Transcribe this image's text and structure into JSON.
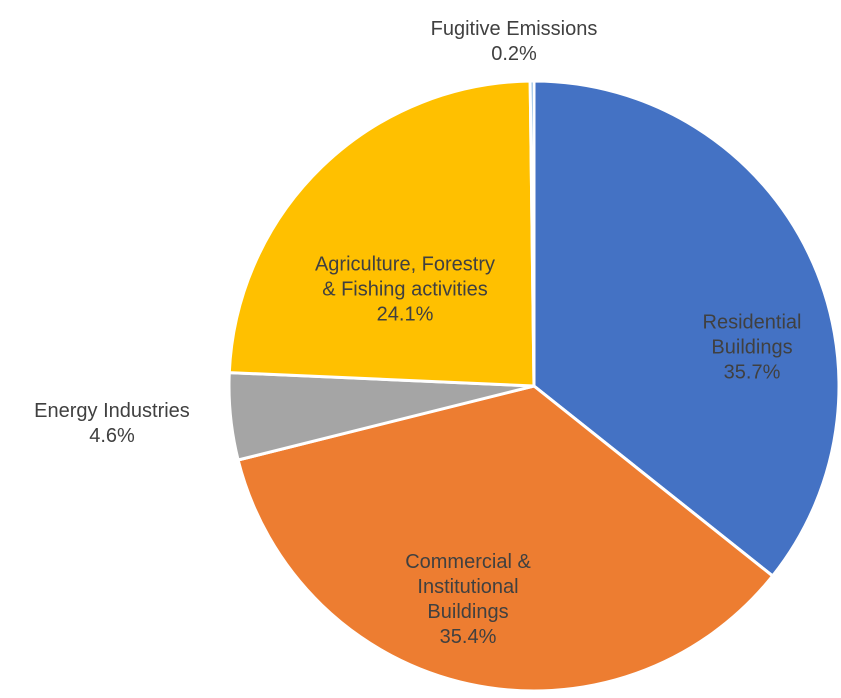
{
  "chart_data": {
    "type": "pie",
    "categories": [
      "Residential Buildings",
      "Commercial & Institutional Buildings",
      "Energy Industries",
      "Agriculture, Forestry & Fishing activities",
      "Fugitive Emissions"
    ],
    "values": [
      35.7,
      35.4,
      4.6,
      24.1,
      0.2
    ],
    "value_labels": [
      "35.7%",
      "35.4%",
      "4.6%",
      "24.1%",
      "0.2%"
    ],
    "colors": [
      "#4472c4",
      "#ed7d31",
      "#a5a5a5",
      "#ffc000",
      "#5b9bd5"
    ]
  }
}
